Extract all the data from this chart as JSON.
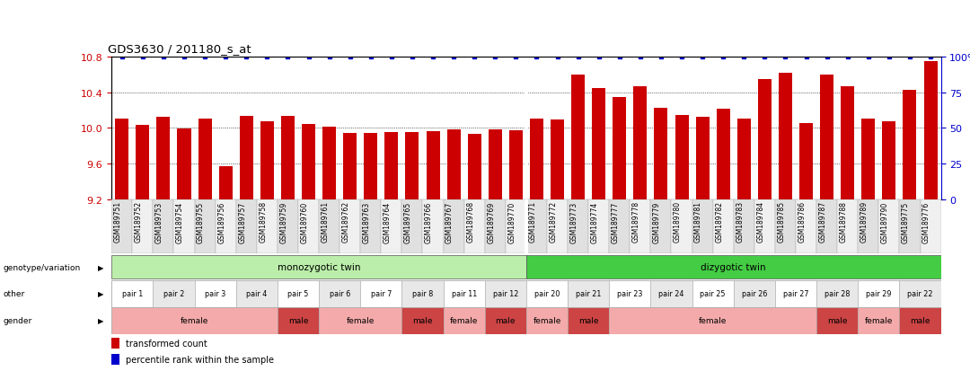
{
  "title": "GDS3630 / 201180_s_at",
  "samples": [
    "GSM189751",
    "GSM189752",
    "GSM189753",
    "GSM189754",
    "GSM189755",
    "GSM189756",
    "GSM189757",
    "GSM189758",
    "GSM189759",
    "GSM189760",
    "GSM189761",
    "GSM189762",
    "GSM189763",
    "GSM189764",
    "GSM189765",
    "GSM189766",
    "GSM189767",
    "GSM189768",
    "GSM189769",
    "GSM189770",
    "GSM189771",
    "GSM189772",
    "GSM189773",
    "GSM189774",
    "GSM189777",
    "GSM189778",
    "GSM189779",
    "GSM189780",
    "GSM189781",
    "GSM189782",
    "GSM189783",
    "GSM189784",
    "GSM189785",
    "GSM189786",
    "GSM189787",
    "GSM189788",
    "GSM189789",
    "GSM189790",
    "GSM189775",
    "GSM189776"
  ],
  "bar_values": [
    10.1,
    10.03,
    10.13,
    9.99,
    10.1,
    9.57,
    10.14,
    10.07,
    10.14,
    10.04,
    10.01,
    9.94,
    9.94,
    9.95,
    9.95,
    9.96,
    9.98,
    9.93,
    9.98,
    9.97,
    10.1,
    10.09,
    10.6,
    10.45,
    10.35,
    10.47,
    10.23,
    10.15,
    10.12,
    10.22,
    10.1,
    10.55,
    10.62,
    10.05,
    10.6,
    10.47,
    10.1,
    10.07,
    10.43,
    10.75
  ],
  "ymin": 9.2,
  "ymax": 10.8,
  "yticks_left": [
    9.2,
    9.6,
    10.0,
    10.4,
    10.8
  ],
  "yticks_right": [
    0,
    25,
    50,
    75,
    100
  ],
  "bar_color": "#cc0000",
  "percentile_color": "#0000cc",
  "mono_label": "monozygotic twin",
  "mono_color": "#bbeeaa",
  "di_label": "dizygotic twin",
  "di_color": "#44cc44",
  "mono_count": 20,
  "di_count": 20,
  "pairs": [
    "pair 1",
    "pair 1",
    "pair 2",
    "pair 2",
    "pair 3",
    "pair 3",
    "pair 4",
    "pair 4",
    "pair 5",
    "pair 5",
    "pair 6",
    "pair 6",
    "pair 7",
    "pair 7",
    "pair 8",
    "pair 8",
    "pair 11",
    "pair 11",
    "pair 12",
    "pair 12",
    "pair 20",
    "pair 20",
    "pair 21",
    "pair 21",
    "pair 23",
    "pair 23",
    "pair 24",
    "pair 24",
    "pair 25",
    "pair 25",
    "pair 26",
    "pair 26",
    "pair 27",
    "pair 27",
    "pair 28",
    "pair 28",
    "pair 29",
    "pair 29",
    "pair 22",
    "pair 22"
  ],
  "gender": [
    "female",
    "female",
    "female",
    "female",
    "female",
    "female",
    "female",
    "female",
    "male",
    "male",
    "female",
    "female",
    "female",
    "female",
    "male",
    "male",
    "female",
    "female",
    "male",
    "male",
    "female",
    "female",
    "male",
    "male",
    "female",
    "female",
    "female",
    "female",
    "female",
    "female",
    "female",
    "female",
    "female",
    "female",
    "male",
    "male",
    "female",
    "female",
    "male",
    "male"
  ],
  "gender_female_color": "#f4aaaa",
  "gender_male_color": "#cc4444",
  "legend_items": [
    {
      "label": "transformed count",
      "color": "#cc0000"
    },
    {
      "label": "percentile rank within the sample",
      "color": "#0000cc"
    }
  ]
}
